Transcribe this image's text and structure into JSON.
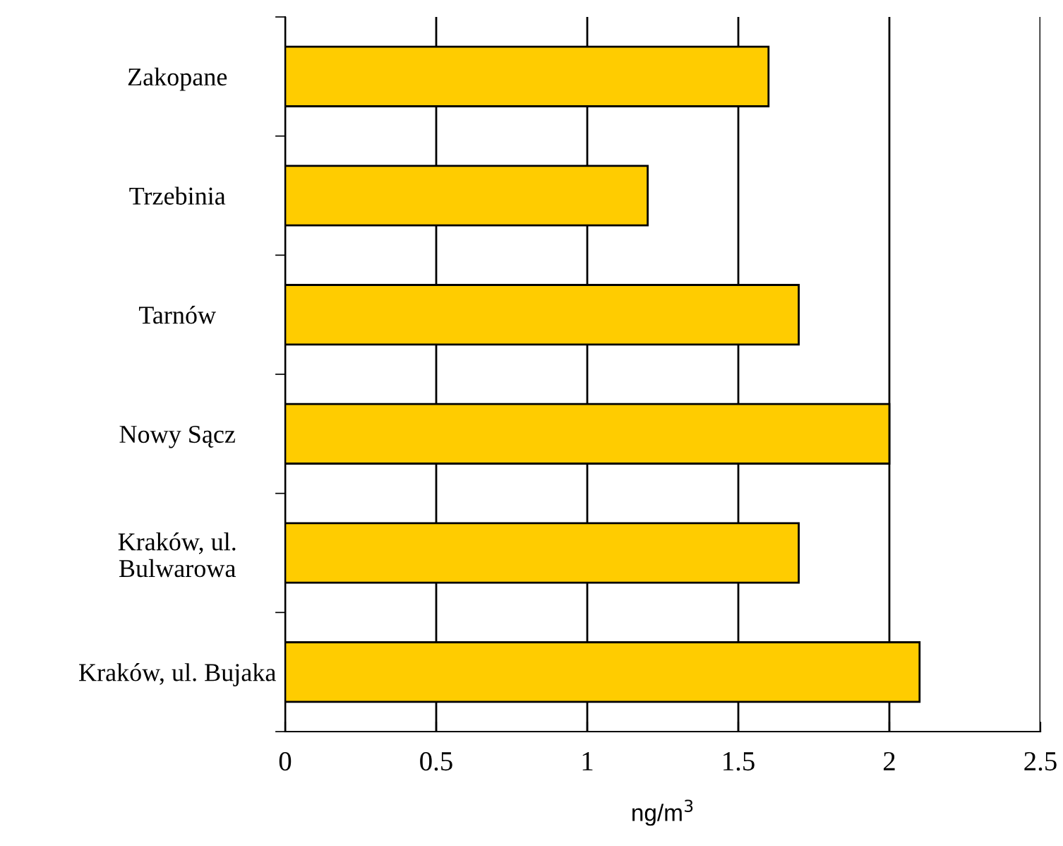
{
  "chart_data": {
    "type": "bar",
    "orientation": "horizontal",
    "categories": [
      "Zakopane",
      "Trzebinia",
      "Tarnów",
      "Nowy Sącz",
      "Kraków, ul.\nBulwarowa",
      "Kraków, ul. Bujaka"
    ],
    "values": [
      1.6,
      1.2,
      1.7,
      2.0,
      1.7,
      2.1
    ],
    "color": "#ffcc00",
    "xlim": [
      0,
      2.5
    ],
    "xticks": [
      0,
      0.5,
      1,
      1.5,
      2,
      2.5
    ],
    "xlabel": "ng/m$^{3}$",
    "grid": "x",
    "legend": false
  }
}
